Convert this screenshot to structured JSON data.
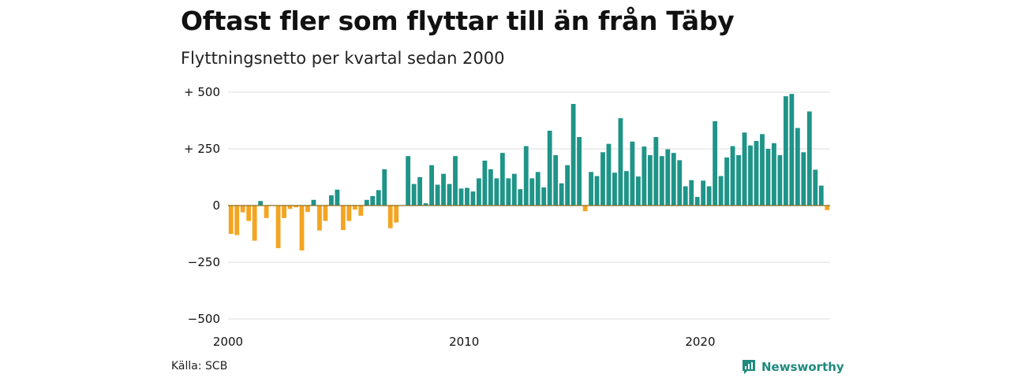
{
  "title": "Oftast fler som flyttar till än från Täby",
  "subtitle": "Flyttningsnetto per kvartal sedan 2000",
  "source": "Källa: SCB",
  "brand": {
    "name": "Newsworthy",
    "icon": "newsworthy-logo-icon"
  },
  "colors": {
    "positive": "#1f9488",
    "negative": "#f3a521",
    "grid": "#dddddd",
    "zero": "#8b6a1f"
  },
  "chart_data": {
    "type": "bar",
    "title": "Oftast fler som flyttar till än från Täby",
    "subtitle": "Flyttningsnetto per kvartal sedan 2000",
    "xlabel": "",
    "ylabel": "",
    "ylim": [
      -500,
      500
    ],
    "yticks": [
      {
        "value": 500,
        "label": "+ 500"
      },
      {
        "value": 250,
        "label": "+ 250"
      },
      {
        "value": 0,
        "label": "0"
      },
      {
        "value": -250,
        "label": "−250"
      },
      {
        "value": -500,
        "label": "−500"
      }
    ],
    "xticks": [
      {
        "value": 2000,
        "label": "2000"
      },
      {
        "value": 2010,
        "label": "2010"
      },
      {
        "value": 2020,
        "label": "2020"
      }
    ],
    "x_start": 2000,
    "x_end": 2025.5,
    "period": "quarter",
    "grid": true,
    "legend": "none",
    "values": [
      -125,
      -130,
      -30,
      -68,
      -155,
      20,
      -55,
      0,
      -188,
      -55,
      -15,
      -8,
      -198,
      -28,
      25,
      -110,
      -68,
      45,
      70,
      -108,
      -68,
      -18,
      -45,
      25,
      42,
      68,
      160,
      -100,
      -75,
      0,
      218,
      95,
      125,
      10,
      178,
      92,
      140,
      95,
      218,
      75,
      78,
      62,
      120,
      198,
      160,
      120,
      232,
      120,
      140,
      72,
      262,
      120,
      148,
      80,
      330,
      222,
      98,
      178,
      448,
      302,
      -25,
      148,
      130,
      235,
      272,
      145,
      385,
      152,
      282,
      128,
      260,
      222,
      302,
      218,
      248,
      232,
      200,
      85,
      112,
      38,
      110,
      85,
      372,
      130,
      212,
      262,
      222,
      322,
      265,
      285,
      315,
      250,
      275,
      222,
      482,
      492,
      342,
      235,
      415,
      158,
      88,
      -20
    ]
  }
}
